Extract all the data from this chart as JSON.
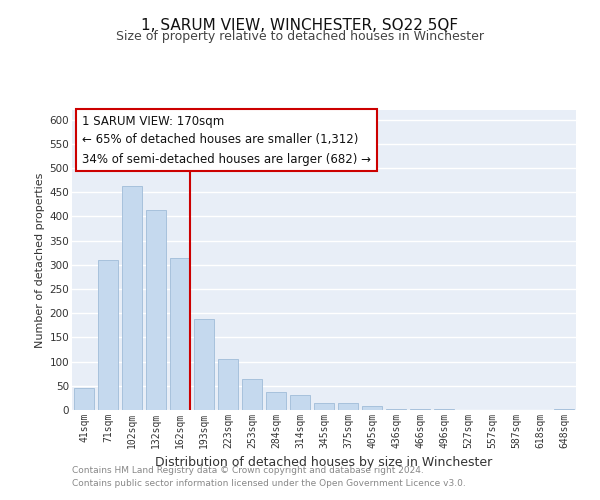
{
  "title": "1, SARUM VIEW, WINCHESTER, SO22 5QF",
  "subtitle": "Size of property relative to detached houses in Winchester",
  "xlabel": "Distribution of detached houses by size in Winchester",
  "ylabel": "Number of detached properties",
  "bar_labels": [
    "41sqm",
    "71sqm",
    "102sqm",
    "132sqm",
    "162sqm",
    "193sqm",
    "223sqm",
    "253sqm",
    "284sqm",
    "314sqm",
    "345sqm",
    "375sqm",
    "405sqm",
    "436sqm",
    "466sqm",
    "496sqm",
    "527sqm",
    "557sqm",
    "587sqm",
    "618sqm",
    "648sqm"
  ],
  "bar_values": [
    46,
    311,
    463,
    413,
    314,
    188,
    105,
    64,
    37,
    31,
    14,
    14,
    8,
    3,
    3,
    2,
    1,
    0,
    0,
    0,
    2
  ],
  "bar_color": "#c5d9ee",
  "bar_edge_color": "#a0bcd8",
  "ylim": [
    0,
    620
  ],
  "yticks": [
    0,
    50,
    100,
    150,
    200,
    250,
    300,
    350,
    400,
    450,
    500,
    550,
    600
  ],
  "marker_index": 4,
  "marker_color": "#cc0000",
  "annotation_title": "1 SARUM VIEW: 170sqm",
  "annotation_line1": "← 65% of detached houses are smaller (1,312)",
  "annotation_line2": "34% of semi-detached houses are larger (682) →",
  "annotation_box_color": "#ffffff",
  "annotation_box_edge": "#cc0000",
  "footer_line1": "Contains HM Land Registry data © Crown copyright and database right 2024.",
  "footer_line2": "Contains public sector information licensed under the Open Government Licence v3.0.",
  "background_color": "#ffffff",
  "plot_background": "#e8eef7"
}
